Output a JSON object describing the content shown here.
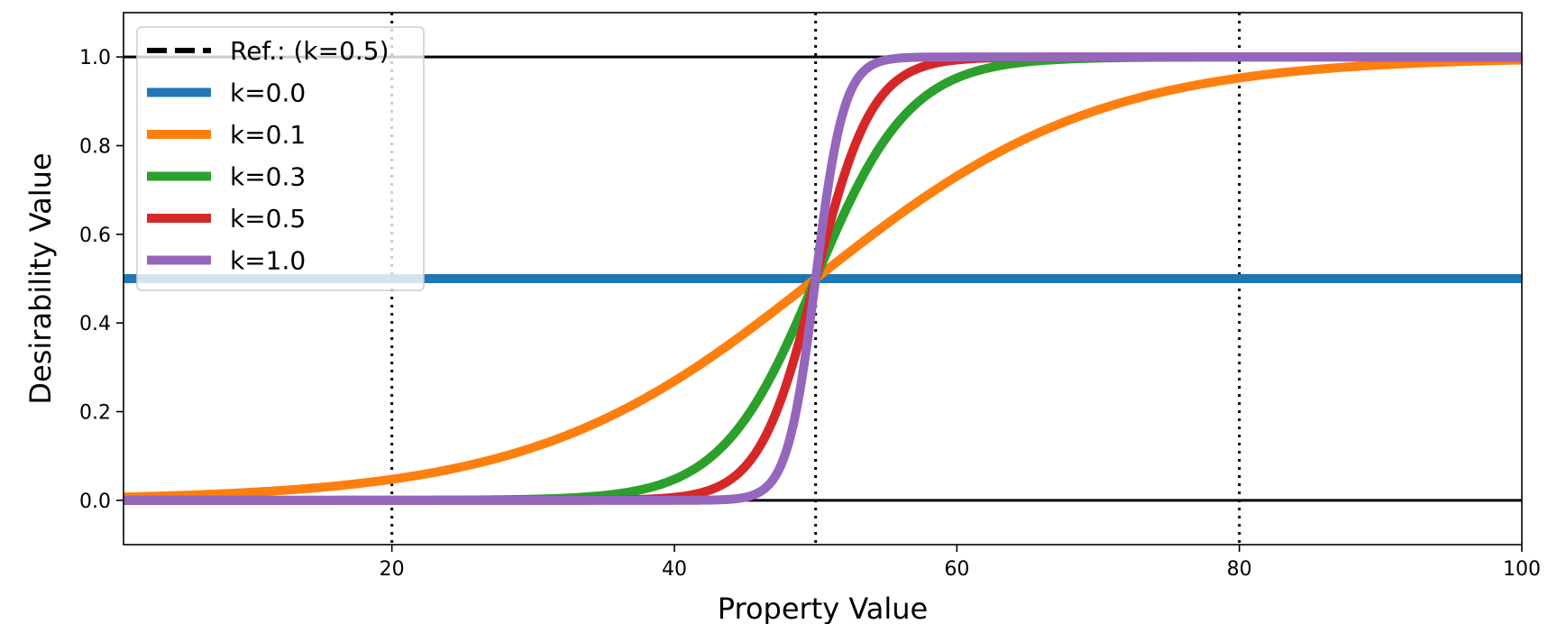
{
  "chart_data": {
    "type": "line",
    "title": "",
    "xlabel": "Property Value",
    "ylabel": "Desirability Value",
    "xlim": [
      1,
      100
    ],
    "ylim": [
      -0.1,
      1.1
    ],
    "x_ticks": [
      20,
      40,
      60,
      80,
      100
    ],
    "y_ticks": [
      0.0,
      0.2,
      0.4,
      0.6,
      0.8,
      1.0
    ],
    "x_tick_labels": [
      "20",
      "40",
      "60",
      "80",
      "100"
    ],
    "y_tick_labels": [
      "0.0",
      "0.2",
      "0.4",
      "0.6",
      "0.8",
      "1.0"
    ],
    "grid": false,
    "legend_position": "top-left",
    "reference_lines": {
      "horizontal": [
        0.0,
        1.0
      ],
      "vertical_dotted": [
        20,
        50,
        80
      ]
    },
    "curve_form": "sigmoid 1/(1+exp(-k*(x-50)))",
    "center": 50,
    "series": [
      {
        "name": "Ref.: (k=0.5)",
        "k": 0.5,
        "color": "#000000",
        "style": "dashed",
        "in_legend": true,
        "drawn": false
      },
      {
        "name": "k=0.0",
        "k": 0.0,
        "color": "#1f77b4",
        "style": "solid"
      },
      {
        "name": "k=0.1",
        "k": 0.1,
        "color": "#ff7f0e",
        "style": "solid"
      },
      {
        "name": "k=0.3",
        "k": 0.3,
        "color": "#2ca02c",
        "style": "solid"
      },
      {
        "name": "k=0.5",
        "k": 0.5,
        "color": "#d62728",
        "style": "solid"
      },
      {
        "name": "k=1.0",
        "k": 1.0,
        "color": "#9467bd",
        "style": "solid"
      }
    ]
  }
}
